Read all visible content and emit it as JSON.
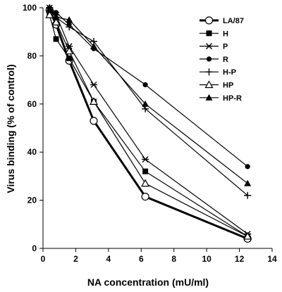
{
  "chart_data": {
    "type": "line",
    "title": "",
    "xlabel": "NA concentration (mU/ml)",
    "ylabel": "Virus binding (% of control)",
    "xlim": [
      0,
      14
    ],
    "ylim": [
      0,
      100
    ],
    "xticks": [
      0,
      2,
      4,
      6,
      8,
      10,
      12,
      14
    ],
    "yticks": [
      0,
      20,
      40,
      60,
      80,
      100
    ],
    "grid": false,
    "legend": "top-right",
    "series": [
      {
        "name": "LA/87",
        "marker": "circle-open",
        "stroke": 3,
        "x": [
          0.4,
          0.8,
          1.6,
          3.1,
          6.25,
          12.5
        ],
        "y": [
          99,
          93,
          78,
          53,
          21.5,
          4
        ]
      },
      {
        "name": "H",
        "marker": "square",
        "x": [
          0.4,
          0.8,
          1.6,
          3.1,
          6.25,
          12.5
        ],
        "y": [
          97,
          87,
          79,
          61,
          32,
          5
        ]
      },
      {
        "name": "P",
        "marker": "star",
        "x": [
          0.4,
          0.8,
          1.6,
          3.1,
          6.25,
          12.5
        ],
        "y": [
          100,
          97,
          84,
          68,
          37,
          6
        ]
      },
      {
        "name": "R",
        "marker": "circle",
        "x": [
          0.4,
          0.8,
          1.6,
          3.1,
          6.25,
          12.5
        ],
        "y": [
          100,
          98,
          93,
          83,
          68,
          34
        ]
      },
      {
        "name": "H-P",
        "marker": "plus",
        "x": [
          0.4,
          0.8,
          1.6,
          3.1,
          6.25,
          12.5
        ],
        "y": [
          100,
          96,
          92,
          86,
          58,
          22
        ]
      },
      {
        "name": "HP",
        "marker": "triangle-open",
        "x": [
          0.4,
          0.8,
          1.6,
          3.1,
          6.25,
          12.5
        ],
        "y": [
          97,
          94,
          82,
          61,
          27,
          5
        ]
      },
      {
        "name": "HP-R",
        "marker": "triangle",
        "x": [
          0.4,
          0.8,
          1.6,
          3.1,
          6.25,
          12.5
        ],
        "y": [
          99,
          96,
          95,
          84,
          60,
          27
        ]
      }
    ]
  }
}
